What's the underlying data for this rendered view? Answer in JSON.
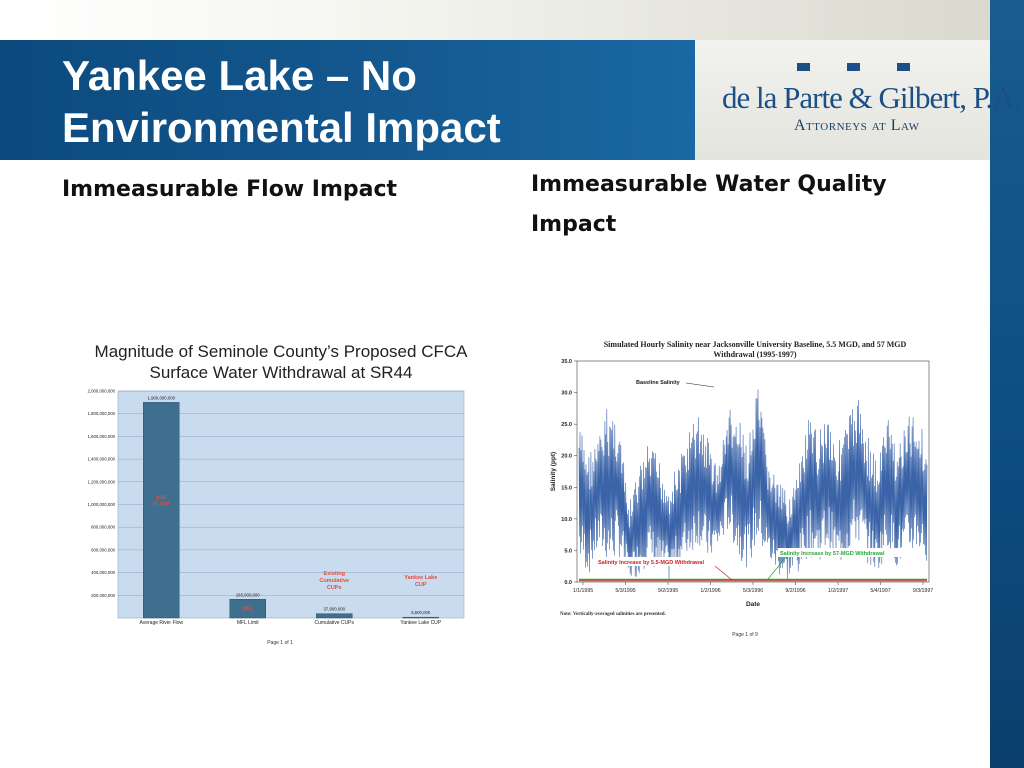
{
  "slide": {
    "title": "Yankee Lake – No Environmental Impact",
    "left_heading": "Immeasurable Flow Impact",
    "right_heading": "Immeasurable Water Quality Impact"
  },
  "logo": {
    "name": "de la Parte & Gilbert, P.A.",
    "subtitle": "Attorneys at Law",
    "color": "#1b4f85"
  },
  "colors": {
    "title_band": "#0c4a7e",
    "right_bar": "#0d4c80",
    "bar_fill": "#3f6f8e",
    "plot_bg": "#c9dcef",
    "salinity_line": "#3a63a8",
    "withdrawal_line": "#22aa33"
  },
  "chart_data": [
    {
      "type": "bar",
      "title": "Magnitude of Seminole County’s Proposed CFCA Surface Water Withdrawal at SR44",
      "categories": [
        "Average River Flow",
        "MFL Limit",
        "Cumulative CUPs",
        "Yankee Lake CUP"
      ],
      "values": [
        1900000000,
        165000000,
        37900000,
        5500000
      ],
      "value_labels": [
        "1,900,000,000",
        "165,000,000",
        "37,900,000",
        "5,500,000"
      ],
      "ylim": [
        0,
        2000000000
      ],
      "yticks": [
        "200,000,000",
        "400,000,000",
        "600,000,000",
        "800,000,000",
        "1,000,000,000",
        "1,200,000,000",
        "1,400,000,000",
        "1,600,000,000",
        "1,800,000,000",
        "2,000,000,000"
      ],
      "bar_labels": [
        "SJR FLOW",
        "MFL",
        "",
        ""
      ],
      "annotations": [
        {
          "category": "Cumulative CUPs",
          "text": [
            "Existing",
            "Cumulative",
            "CUPs"
          ]
        },
        {
          "category": "Yankee Lake CUP",
          "text": [
            "Yankee Lake",
            "CUP"
          ]
        }
      ],
      "footer": "Page 1 of 1",
      "grid": true
    },
    {
      "type": "line",
      "title": "Simulated Hourly Salinity near Jacksonville University Baseline, 5.5 MGD, and 57 MGD Withdrawal (1995-1997)",
      "xlabel": "Date",
      "ylabel": "Salinity (ppt)",
      "ylim": [
        0,
        35
      ],
      "yticks": [
        "0.0",
        "5.0",
        "10.0",
        "15.0",
        "20.0",
        "25.0",
        "30.0",
        "35.0"
      ],
      "xticks": [
        "1/1/1995",
        "5/3/1995",
        "9/2/1995",
        "1/2/1996",
        "5/3/1996",
        "9/2/1996",
        "1/2/1997",
        "5/4/1997",
        "9/3/1997"
      ],
      "annotations": [
        "Baseline Salinity",
        "Salinity Increase by 5.5-MGD Withdrawal",
        "Salinity Increase by 57-MGD Withdrawal"
      ],
      "series": [
        {
          "name": "Baseline Salinity",
          "envelope": {
            "x": [
              "1/1/1995",
              "2/1/1995",
              "3/1/1995",
              "4/1/1995",
              "5/1/1995",
              "6/1/1995",
              "7/1/1995",
              "8/1/1995",
              "9/1/1995",
              "10/1/1995",
              "11/1/1995",
              "12/1/1995",
              "1/1/1996",
              "2/1/1996",
              "3/1/1996",
              "4/1/1996",
              "5/1/1996",
              "6/1/1996",
              "7/1/1996",
              "8/1/1996",
              "9/1/1996",
              "10/1/1996",
              "11/1/1996",
              "12/1/1996",
              "1/1/1997",
              "2/1/1997",
              "3/1/1997",
              "4/1/1997",
              "5/1/1997",
              "6/1/1997",
              "7/1/1997",
              "8/1/1997",
              "9/1/1997",
              "10/1/1997",
              "11/1/1997",
              "12/1/1997"
            ],
            "max": [
              25,
              21,
              23,
              29,
              26,
              12,
              18,
              22,
              20,
              16,
              19,
              24,
              27,
              23,
              18,
              28,
              26,
              22,
              31,
              20,
              16,
              14,
              17,
              26,
              24,
              28,
              22,
              26,
              30,
              24,
              19,
              27,
              22,
              26,
              28,
              22
            ],
            "min": [
              3,
              1,
              5,
              2,
              4,
              0,
              1,
              3,
              1,
              0,
              2,
              4,
              6,
              3,
              5,
              8,
              4,
              2,
              6,
              3,
              1,
              0,
              1,
              4,
              3,
              5,
              2,
              4,
              6,
              3,
              1,
              5,
              2,
              3,
              5,
              2
            ]
          }
        },
        {
          "name": "Salinity Increase by 5.5-MGD Withdrawal",
          "y_approx": 0.2
        },
        {
          "name": "Salinity Increase by 57-MGD Withdrawal",
          "y_approx": 0.4
        }
      ],
      "note": "Note: Vertically-averaged salinities are presented.",
      "footer": "Page 1 of 9"
    }
  ]
}
